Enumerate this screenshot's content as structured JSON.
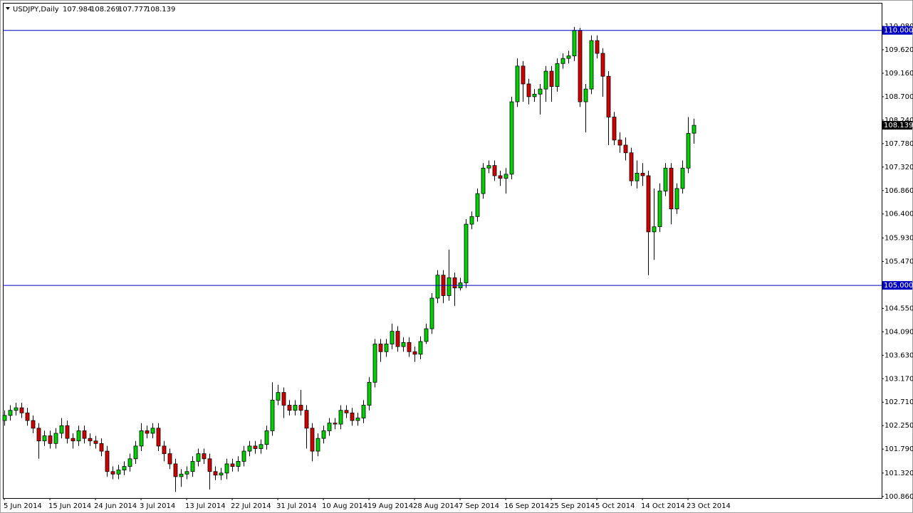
{
  "chart_data": {
    "type": "candlestick",
    "symbol": "USDJPY,Daily",
    "categories": [
      "5 Jun 2014",
      null,
      null,
      null,
      null,
      null,
      null,
      null,
      "15 Jun 2014",
      null,
      null,
      null,
      null,
      null,
      null,
      null,
      "24 Jun 2014",
      null,
      null,
      null,
      null,
      null,
      null,
      null,
      "3 Jul 2014",
      null,
      null,
      null,
      null,
      null,
      null,
      null,
      "13 Jul 2014",
      null,
      null,
      null,
      null,
      null,
      null,
      null,
      "22 Jul 2014",
      null,
      null,
      null,
      null,
      null,
      null,
      null,
      "31 Jul 2014",
      null,
      null,
      null,
      null,
      null,
      null,
      null,
      "10 Aug 2014",
      null,
      null,
      null,
      null,
      null,
      null,
      null,
      "19 Aug 2014",
      null,
      null,
      null,
      null,
      null,
      null,
      null,
      "28 Aug 2014",
      null,
      null,
      null,
      null,
      null,
      null,
      null,
      "7 Sep 2014",
      null,
      null,
      null,
      null,
      null,
      null,
      null,
      "16 Sep 2014",
      null,
      null,
      null,
      null,
      null,
      null,
      null,
      "25 Sep 2014",
      null,
      null,
      null,
      null,
      null,
      null,
      null,
      "5 Oct 2014",
      null,
      null,
      null,
      null,
      null,
      null,
      null,
      "14 Oct 2014",
      null,
      null,
      null,
      null,
      null,
      null,
      null,
      "23 Oct 2014",
      null
    ],
    "open": [
      102.35,
      102.45,
      102.55,
      102.6,
      102.5,
      102.35,
      102.2,
      101.95,
      102.05,
      101.9,
      102.1,
      102.25,
      102.0,
      101.95,
      102.15,
      102.0,
      101.95,
      101.9,
      101.75,
      101.35,
      101.3,
      101.38,
      101.45,
      101.6,
      101.85,
      102.15,
      102.1,
      102.2,
      101.85,
      101.7,
      101.5,
      101.25,
      101.3,
      101.35,
      101.55,
      101.7,
      101.6,
      101.35,
      101.28,
      101.32,
      101.5,
      101.45,
      101.55,
      101.75,
      101.85,
      101.8,
      101.88,
      102.15,
      102.75,
      102.9,
      102.65,
      102.55,
      102.65,
      102.55,
      102.2,
      101.75,
      102.0,
      102.15,
      102.3,
      102.28,
      102.55,
      102.5,
      102.35,
      102.4,
      102.65,
      103.1,
      103.85,
      103.7,
      103.85,
      104.1,
      103.8,
      103.88,
      103.7,
      103.65,
      103.9,
      104.15,
      104.75,
      105.2,
      104.8,
      105.15,
      104.95,
      105.05,
      106.2,
      106.35,
      106.8,
      107.3,
      107.35,
      107.15,
      107.1,
      107.18,
      108.6,
      109.3,
      108.95,
      108.7,
      108.75,
      108.85,
      109.2,
      108.9,
      109.35,
      109.45,
      109.5,
      110.0,
      108.6,
      108.85,
      109.8,
      109.55,
      109.1,
      108.3,
      107.85,
      107.75,
      107.6,
      107.05,
      107.2,
      107.15,
      106.05,
      106.15,
      106.85,
      107.3,
      106.5,
      106.9,
      107.3,
      107.984
    ],
    "high": [
      102.55,
      102.65,
      102.7,
      102.7,
      102.6,
      102.45,
      102.3,
      102.15,
      102.15,
      102.2,
      102.4,
      102.35,
      102.1,
      102.25,
      102.25,
      102.1,
      102.05,
      102.0,
      101.85,
      101.45,
      101.48,
      101.55,
      101.7,
      101.95,
      102.3,
      102.25,
      102.3,
      102.3,
      101.95,
      101.8,
      101.6,
      101.4,
      101.45,
      101.65,
      101.8,
      101.8,
      101.7,
      101.45,
      101.42,
      101.6,
      101.6,
      101.65,
      101.85,
      101.95,
      101.95,
      101.98,
      102.25,
      103.1,
      103.05,
      103.0,
      102.75,
      102.75,
      102.95,
      102.65,
      102.3,
      102.1,
      102.25,
      102.4,
      102.4,
      102.65,
      102.65,
      102.6,
      102.5,
      102.75,
      103.2,
      103.95,
      103.95,
      103.95,
      104.25,
      104.2,
      103.98,
      103.98,
      103.8,
      104.0,
      104.25,
      104.85,
      105.3,
      105.3,
      105.7,
      105.25,
      105.15,
      106.3,
      106.45,
      106.9,
      107.4,
      107.45,
      107.45,
      107.25,
      107.3,
      108.7,
      109.45,
      109.4,
      109.05,
      108.85,
      108.95,
      109.3,
      109.3,
      109.45,
      109.55,
      109.6,
      110.07,
      110.05,
      108.95,
      109.9,
      109.9,
      109.65,
      109.2,
      108.4,
      108.0,
      107.9,
      107.7,
      107.45,
      107.4,
      107.25,
      106.9,
      107.0,
      107.4,
      107.4,
      107.0,
      107.45,
      108.3,
      108.269
    ],
    "low": [
      102.25,
      102.35,
      102.45,
      102.4,
      102.25,
      102.1,
      101.6,
      101.85,
      101.8,
      101.8,
      102.0,
      101.9,
      101.8,
      101.85,
      101.9,
      101.85,
      101.8,
      101.65,
      101.25,
      101.2,
      101.2,
      101.28,
      101.35,
      101.5,
      101.75,
      102.0,
      102.0,
      101.75,
      101.55,
      101.4,
      100.95,
      101.05,
      101.2,
      101.25,
      101.45,
      101.5,
      101.0,
      101.18,
      101.18,
      101.2,
      101.35,
      101.35,
      101.45,
      101.65,
      101.7,
      101.7,
      101.78,
      102.05,
      102.65,
      102.4,
      102.45,
      102.45,
      102.45,
      101.8,
      101.55,
      101.65,
      101.9,
      102.05,
      102.18,
      102.18,
      102.4,
      102.25,
      102.25,
      102.3,
      102.55,
      103.0,
      103.5,
      103.6,
      103.75,
      103.7,
      103.7,
      103.6,
      103.5,
      103.55,
      103.85,
      104.05,
      104.65,
      104.65,
      104.7,
      104.6,
      104.9,
      104.95,
      106.1,
      106.25,
      106.7,
      107.2,
      107.05,
      106.95,
      106.8,
      107.08,
      108.5,
      108.6,
      108.55,
      108.6,
      108.35,
      108.6,
      108.6,
      108.8,
      109.25,
      109.35,
      109.4,
      108.5,
      108.0,
      108.75,
      109.45,
      108.7,
      107.75,
      107.75,
      107.6,
      107.45,
      106.95,
      106.9,
      106.95,
      105.2,
      105.5,
      106.05,
      106.75,
      106.2,
      106.4,
      106.8,
      107.2,
      107.777
    ],
    "close": [
      102.45,
      102.55,
      102.6,
      102.5,
      102.35,
      102.2,
      101.95,
      102.05,
      101.9,
      102.1,
      102.25,
      102.0,
      101.95,
      102.15,
      102.0,
      101.95,
      101.9,
      101.75,
      101.35,
      101.3,
      101.38,
      101.45,
      101.6,
      101.85,
      102.15,
      102.1,
      102.2,
      101.85,
      101.7,
      101.5,
      101.25,
      101.3,
      101.35,
      101.55,
      101.7,
      101.6,
      101.35,
      101.28,
      101.32,
      101.5,
      101.45,
      101.55,
      101.75,
      101.85,
      101.8,
      101.88,
      102.15,
      102.75,
      102.9,
      102.65,
      102.55,
      102.65,
      102.55,
      102.2,
      101.75,
      102.0,
      102.15,
      102.3,
      102.28,
      102.55,
      102.5,
      102.35,
      102.4,
      102.65,
      103.1,
      103.85,
      103.7,
      103.85,
      104.1,
      103.8,
      103.88,
      103.7,
      103.65,
      103.9,
      104.15,
      104.75,
      105.2,
      104.8,
      105.15,
      104.95,
      105.05,
      106.2,
      106.35,
      106.8,
      107.3,
      107.35,
      107.15,
      107.1,
      107.18,
      108.6,
      109.3,
      108.95,
      108.7,
      108.75,
      108.85,
      109.2,
      108.9,
      109.35,
      109.45,
      109.5,
      110.0,
      108.6,
      108.85,
      109.8,
      109.55,
      109.1,
      108.3,
      107.85,
      107.75,
      107.6,
      107.05,
      107.2,
      107.15,
      106.05,
      106.15,
      106.85,
      107.3,
      106.5,
      106.9,
      107.3,
      107.98,
      108.139
    ],
    "up_color": "#00d000",
    "down_color": "#d00000",
    "ylim": [
      100.83,
      110.54
    ],
    "yticks": [
      {
        "value": 110.08,
        "label": "110.080"
      },
      {
        "value": 109.62,
        "label": "109.620"
      },
      {
        "value": 109.16,
        "label": "109.160"
      },
      {
        "value": 108.7,
        "label": "108.700"
      },
      {
        "value": 108.24,
        "label": "108.240"
      },
      {
        "value": 107.78,
        "label": "107.780"
      },
      {
        "value": 107.32,
        "label": "107.320"
      },
      {
        "value": 106.86,
        "label": "106.860"
      },
      {
        "value": 106.4,
        "label": "106.400"
      },
      {
        "value": 105.93,
        "label": "105.930"
      },
      {
        "value": 105.47,
        "label": "105.470"
      },
      {
        "value": 104.55,
        "label": "104.550"
      },
      {
        "value": 104.09,
        "label": "104.090"
      },
      {
        "value": 103.63,
        "label": "103.630"
      },
      {
        "value": 103.17,
        "label": "103.170"
      },
      {
        "value": 102.71,
        "label": "102.710"
      },
      {
        "value": 102.25,
        "label": "102.250"
      },
      {
        "value": 101.79,
        "label": "101.790"
      },
      {
        "value": 101.32,
        "label": "101.320"
      },
      {
        "value": 100.86,
        "label": "100.860"
      }
    ],
    "price_lines": [
      {
        "value": 110,
        "label": "110.000"
      },
      {
        "value": 105,
        "label": "105.000"
      }
    ],
    "price_line_color": "#0000c0"
  }
}
